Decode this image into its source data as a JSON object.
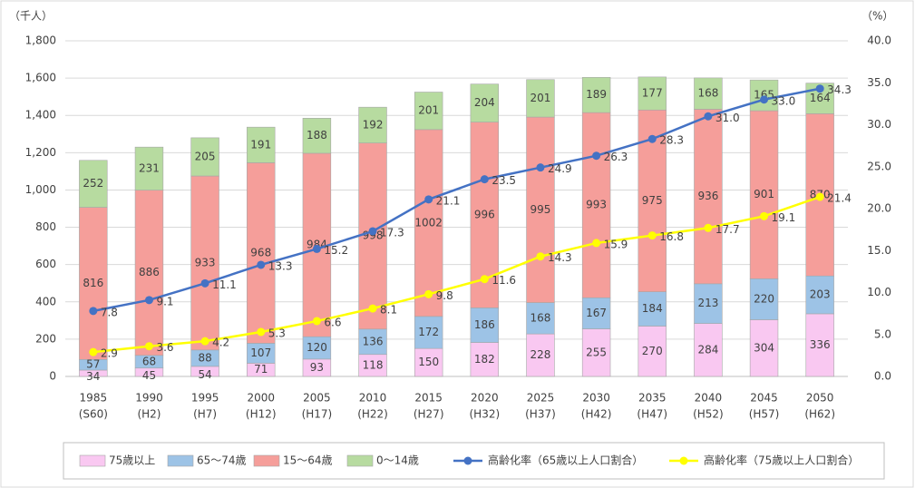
{
  "chart_data": {
    "type": "bar",
    "y_unit": "（千人）",
    "y2_unit": "（%）",
    "categories": [
      "1985",
      "1990",
      "1995",
      "2000",
      "2005",
      "2010",
      "2015",
      "2020",
      "2025",
      "2030",
      "2035",
      "2040",
      "2045",
      "2050"
    ],
    "category_sublabels": [
      "(S60)",
      "(H2)",
      "(H7)",
      "(H12)",
      "(H17)",
      "(H22)",
      "(H27)",
      "(H32)",
      "(H37)",
      "(H42)",
      "(H47)",
      "(H52)",
      "(H57)",
      "(H62)"
    ],
    "stacked": true,
    "series": [
      {
        "name": "75歳以上",
        "color": "#f9c8f1",
        "values": [
          34,
          45,
          54,
          71,
          93,
          118,
          150,
          182,
          228,
          255,
          270,
          284,
          304,
          336
        ]
      },
      {
        "name": "65～74歳",
        "color": "#9dc3e6",
        "values": [
          57,
          68,
          88,
          107,
          120,
          136,
          172,
          186,
          168,
          167,
          184,
          213,
          220,
          203
        ]
      },
      {
        "name": "15～64歳",
        "color": "#f59e9a",
        "values": [
          816,
          886,
          933,
          968,
          984,
          998,
          1002,
          996,
          995,
          993,
          975,
          936,
          901,
          870
        ]
      },
      {
        "name": "0～14歳",
        "color": "#b7dba0",
        "values": [
          252,
          231,
          205,
          191,
          188,
          192,
          201,
          204,
          201,
          189,
          177,
          168,
          165,
          164
        ]
      },
      {
        "name": "高齢化率（65歳以上人口割合）",
        "type": "line",
        "axis": "y2",
        "color": "#4472c4",
        "values": [
          7.8,
          9.1,
          11.1,
          13.3,
          15.2,
          17.3,
          21.1,
          23.5,
          24.9,
          26.3,
          28.3,
          31.0,
          33.0,
          34.3
        ],
        "value_labels": [
          "7.8",
          "9.1",
          "11.1",
          "13.3",
          "15.2",
          "17.3",
          "21.1",
          "23.5",
          "24.9",
          "26.3",
          "28.3",
          "31.0",
          "33.0",
          "34.3"
        ]
      },
      {
        "name": "高齢化率（75歳以上人口割合）",
        "type": "line",
        "axis": "y2",
        "color": "#ffff00",
        "values": [
          2.9,
          3.6,
          4.2,
          5.3,
          6.6,
          8.1,
          9.8,
          11.6,
          14.3,
          15.9,
          16.8,
          17.7,
          19.1,
          21.4
        ],
        "value_labels": [
          "2.9",
          "3.6",
          "4.2",
          "5.3",
          "6.6",
          "8.1",
          "9.8",
          "11.6",
          "14.3",
          "15.9",
          "16.8",
          "17.7",
          "19.1",
          "21.4"
        ]
      }
    ],
    "ylim": [
      0,
      1800
    ],
    "yticks": [
      0,
      200,
      400,
      600,
      800,
      {
        "value": 1000,
        "label": "1,000"
      },
      {
        "value": 1200,
        "label": "1,200"
      },
      {
        "value": 1400,
        "label": "1,400"
      },
      {
        "value": 1600,
        "label": "1,600"
      },
      {
        "value": 1800,
        "label": "1,800"
      }
    ],
    "y2lim": [
      0,
      40
    ],
    "y2ticks": [
      {
        "value": 0,
        "label": "0.0"
      },
      {
        "value": 5,
        "label": "5.0"
      },
      {
        "value": 10,
        "label": "10.0"
      },
      {
        "value": 15,
        "label": "15.0"
      },
      {
        "value": 20,
        "label": "20.0"
      },
      {
        "value": 25,
        "label": "25.0"
      },
      {
        "value": 30,
        "label": "30.0"
      },
      {
        "value": 35,
        "label": "35.0"
      },
      {
        "value": 40,
        "label": "40.0"
      }
    ],
    "grid": true,
    "legend": "bottom"
  }
}
